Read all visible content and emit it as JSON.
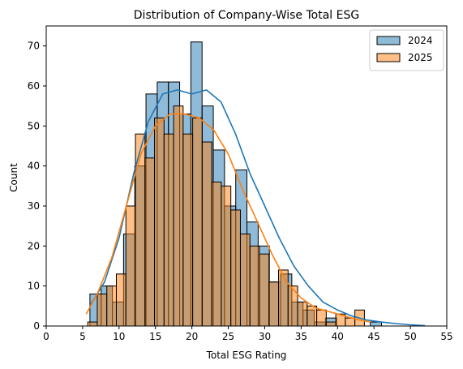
{
  "chart_data": {
    "type": "histogram",
    "title": "Distribution of Company-Wise Total ESG",
    "xlabel": "Total ESG Rating",
    "ylabel": "Count",
    "xlim": [
      0,
      55
    ],
    "ylim": [
      0,
      75
    ],
    "xticks": [
      0,
      5,
      10,
      15,
      20,
      25,
      30,
      35,
      40,
      45,
      50,
      55
    ],
    "yticks": [
      0,
      10,
      20,
      30,
      40,
      50,
      60,
      70
    ],
    "legend_position": "upper-right",
    "series": [
      {
        "name": "2024",
        "color": "#1f77b4",
        "bin_start": 6,
        "bin_width": 1.54,
        "counts": [
          8,
          10,
          6,
          23,
          40,
          58,
          61,
          61,
          53,
          71,
          55,
          44,
          30,
          39,
          26,
          20,
          11,
          13,
          6,
          4,
          1,
          2,
          0,
          0,
          0,
          1
        ],
        "kde": {
          "x": [
            6,
            8,
            10,
            12,
            14,
            16,
            18,
            20,
            22,
            24,
            26,
            28,
            30,
            32,
            34,
            36,
            38,
            40,
            42,
            44,
            46,
            48,
            50,
            52
          ],
          "y": [
            5,
            11,
            22,
            38,
            51,
            58,
            59,
            58,
            59,
            56,
            48,
            38,
            30,
            22,
            15,
            10,
            6,
            4,
            2.5,
            1.5,
            1,
            0.6,
            0.3,
            0.1
          ]
        }
      },
      {
        "name": "2025",
        "color": "#ff7f0e",
        "bin_start": 5.7,
        "bin_width": 1.31,
        "counts": [
          1,
          8,
          10,
          13,
          30,
          48,
          42,
          52,
          48,
          55,
          48,
          52,
          46,
          36,
          35,
          29,
          23,
          20,
          18,
          11,
          14,
          10,
          6,
          5,
          4,
          1,
          3,
          2,
          4
        ],
        "kde": {
          "x": [
            5.5,
            7,
            9,
            11,
            13,
            15,
            17,
            19,
            21,
            23,
            25,
            27,
            29,
            31,
            33,
            35,
            37,
            39,
            41,
            43,
            44.5
          ],
          "y": [
            3,
            8,
            17,
            30,
            43,
            50,
            53,
            53,
            52,
            49,
            43,
            34,
            26,
            18,
            11,
            7,
            4.5,
            3.5,
            2.5,
            1.5,
            1
          ]
        }
      }
    ]
  }
}
